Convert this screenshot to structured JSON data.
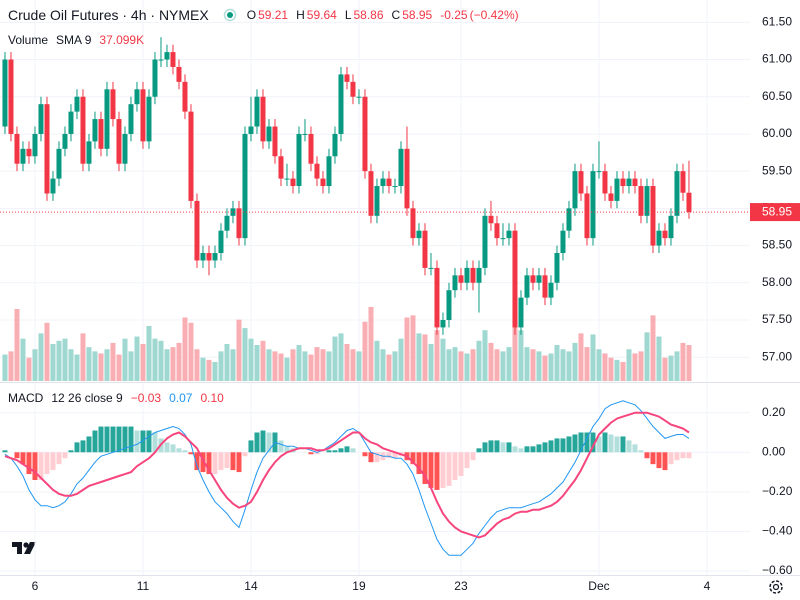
{
  "chart_data": {
    "type": "candlestick",
    "title": "Crude Oil Futures · 4h · NYMEX",
    "ohlc_labels": [
      "O",
      "H",
      "L",
      "C"
    ],
    "change": -0.25,
    "change_percent": {
      "value": -0.42,
      "label": "(−0.42%)"
    },
    "open": [
      60.1,
      61.0,
      60.0,
      59.6,
      59.8,
      59.7,
      60.0,
      60.4,
      59.2,
      59.4,
      59.8,
      60.0,
      60.3,
      60.5,
      59.6,
      59.9,
      60.2,
      59.8,
      60.6,
      60.2,
      59.6,
      60.0,
      60.4,
      60.6,
      59.9,
      60.5,
      61.0,
      61.0,
      61.1,
      60.9,
      60.7,
      60.3,
      59.1,
      58.3,
      58.4,
      58.3,
      58.4,
      58.7,
      58.9,
      59.0,
      58.6,
      60.0,
      60.1,
      60.5,
      59.9,
      60.1,
      59.7,
      59.4,
      59.4,
      59.3,
      60.0,
      60.0,
      59.6,
      59.4,
      59.3,
      59.7,
      60.0,
      60.8,
      60.7,
      60.5,
      60.5,
      59.5,
      58.9,
      59.3,
      59.4,
      59.3,
      59.3,
      59.8,
      59.0,
      58.6,
      58.7,
      58.2,
      58.2,
      57.4,
      57.5,
      57.9,
      58.1,
      58.0,
      58.2,
      58.0,
      58.2,
      58.9,
      58.8,
      58.6,
      58.6,
      58.7,
      57.4,
      57.8,
      58.1,
      58.0,
      58.1,
      57.8,
      58.0,
      58.4,
      58.7,
      59.0,
      59.5,
      59.2,
      58.6,
      59.5,
      59.5,
      59.2,
      59.1,
      59.4,
      59.3,
      59.4,
      59.3,
      58.9,
      59.3,
      58.5,
      58.7,
      58.6,
      58.9,
      59.5,
      59.21
    ],
    "high": [
      61.1,
      61.1,
      60.1,
      59.9,
      59.9,
      60.1,
      60.5,
      60.5,
      59.5,
      59.9,
      60.1,
      60.4,
      60.6,
      60.6,
      60.0,
      60.3,
      60.3,
      60.7,
      60.7,
      60.3,
      60.1,
      60.5,
      60.7,
      60.7,
      60.6,
      61.1,
      61.3,
      61.2,
      61.2,
      61.0,
      60.8,
      60.4,
      59.2,
      58.5,
      58.5,
      58.5,
      58.8,
      59.0,
      59.1,
      59.1,
      60.1,
      60.5,
      60.6,
      60.6,
      60.2,
      60.2,
      59.8,
      59.6,
      59.5,
      60.1,
      60.2,
      60.1,
      59.7,
      59.5,
      59.8,
      60.1,
      60.9,
      60.9,
      60.8,
      60.6,
      60.6,
      59.6,
      59.4,
      59.5,
      59.5,
      59.4,
      59.9,
      60.1,
      59.1,
      58.8,
      58.8,
      58.4,
      58.3,
      57.6,
      58.0,
      58.2,
      58.2,
      58.3,
      58.3,
      58.3,
      59.0,
      59.1,
      58.9,
      58.8,
      58.8,
      58.8,
      57.9,
      58.2,
      58.2,
      58.2,
      58.2,
      58.1,
      58.5,
      58.8,
      59.1,
      59.6,
      59.6,
      59.3,
      59.6,
      59.9,
      59.6,
      59.3,
      59.5,
      59.5,
      59.5,
      59.5,
      59.4,
      59.4,
      59.4,
      58.8,
      58.8,
      59.0,
      59.6,
      59.6,
      59.64
    ],
    "low": [
      60.0,
      59.9,
      59.5,
      59.5,
      59.6,
      59.6,
      59.9,
      59.1,
      59.1,
      59.3,
      59.7,
      59.9,
      60.2,
      59.5,
      59.5,
      59.8,
      59.7,
      59.7,
      60.1,
      59.5,
      59.5,
      59.9,
      60.3,
      59.8,
      59.8,
      60.4,
      60.9,
      60.9,
      60.8,
      60.6,
      60.2,
      59.0,
      58.2,
      58.2,
      58.1,
      58.2,
      58.3,
      58.6,
      58.8,
      58.5,
      58.5,
      59.9,
      60.0,
      59.8,
      59.8,
      59.6,
      59.3,
      59.3,
      59.2,
      59.2,
      59.9,
      59.5,
      59.3,
      59.2,
      59.2,
      59.6,
      59.9,
      60.6,
      60.4,
      60.4,
      59.4,
      58.8,
      58.8,
      59.2,
      59.2,
      59.2,
      59.2,
      58.9,
      58.5,
      58.5,
      58.1,
      58.1,
      57.3,
      57.3,
      57.4,
      57.8,
      57.9,
      57.9,
      57.9,
      57.6,
      58.1,
      58.7,
      58.5,
      58.5,
      58.5,
      57.3,
      57.3,
      57.7,
      57.9,
      57.9,
      57.7,
      57.7,
      57.9,
      58.3,
      58.6,
      58.9,
      59.1,
      58.5,
      58.5,
      59.4,
      59.1,
      59.0,
      59.0,
      59.2,
      59.2,
      59.2,
      58.8,
      58.8,
      58.4,
      58.4,
      58.5,
      58.5,
      58.8,
      59.1,
      58.86
    ],
    "close": [
      61.0,
      60.0,
      59.6,
      59.8,
      59.7,
      60.0,
      60.4,
      59.2,
      59.4,
      59.8,
      60.0,
      60.3,
      60.5,
      59.6,
      59.9,
      60.2,
      59.8,
      60.6,
      60.2,
      59.6,
      60.0,
      60.4,
      60.6,
      59.9,
      60.5,
      61.0,
      61.0,
      61.1,
      60.9,
      60.7,
      60.3,
      59.1,
      58.3,
      58.4,
      58.3,
      58.4,
      58.7,
      58.9,
      59.0,
      58.6,
      60.0,
      60.1,
      60.5,
      59.9,
      60.1,
      59.7,
      59.4,
      59.4,
      59.3,
      60.0,
      60.0,
      59.6,
      59.4,
      59.3,
      59.7,
      60.0,
      60.8,
      60.7,
      60.5,
      60.5,
      59.5,
      58.9,
      59.3,
      59.4,
      59.3,
      59.3,
      59.8,
      59.0,
      58.6,
      58.7,
      58.2,
      58.2,
      57.4,
      57.5,
      57.9,
      58.1,
      58.0,
      58.2,
      58.0,
      58.2,
      58.9,
      58.8,
      58.6,
      58.6,
      58.7,
      57.4,
      57.8,
      58.1,
      58.0,
      58.1,
      57.8,
      58.0,
      58.4,
      58.7,
      59.0,
      59.5,
      59.2,
      58.6,
      59.5,
      59.5,
      59.2,
      59.1,
      59.4,
      59.3,
      59.4,
      59.3,
      58.9,
      59.3,
      58.5,
      58.7,
      58.6,
      58.9,
      59.5,
      59.21,
      58.95
    ],
    "up_color": "#089981",
    "down_color": "#f23645",
    "xlim": [
      -0.83,
      124.17
    ],
    "xticks": [
      {
        "value": 5,
        "label": "6"
      },
      {
        "value": 23,
        "label": "11"
      },
      {
        "value": 41,
        "label": "14"
      },
      {
        "value": 59,
        "label": "19"
      },
      {
        "value": 76,
        "label": "23"
      },
      {
        "value": 99,
        "label": "Dec"
      },
      {
        "value": 117,
        "label": "4"
      }
    ],
    "ylim": [
      56.68,
      61.8
    ],
    "yticks": [
      {
        "value": 61.5,
        "label": "61.50"
      },
      {
        "value": 61,
        "label": "61.00"
      },
      {
        "value": 60.5,
        "label": "60.50"
      },
      {
        "value": 60,
        "label": "60.00"
      },
      {
        "value": 59.5,
        "label": "59.50"
      },
      {
        "value": 59,
        "label": "59.00"
      },
      {
        "value": 58.5,
        "label": "58.50"
      },
      {
        "value": 58,
        "label": "58.00"
      },
      {
        "value": 57.5,
        "label": "57.50"
      },
      {
        "value": 57,
        "label": "57.00"
      }
    ],
    "grid": true,
    "volume": {
      "title": "Volume",
      "sma_label": "SMA 9",
      "sma": {
        "value": 37.099,
        "label": "37.099K"
      },
      "ylim": [
        0,
        360
      ],
      "up_color": "#9fd8d0",
      "down_color": "#f8aeb3",
      "values": [
        25,
        28,
        68,
        40,
        22,
        30,
        45,
        55,
        35,
        38,
        40,
        30,
        25,
        45,
        32,
        28,
        26,
        30,
        36,
        25,
        40,
        28,
        42,
        35,
        52,
        40,
        38,
        30,
        32,
        36,
        60,
        55,
        30,
        22,
        20,
        18,
        28,
        35,
        30,
        58,
        50,
        40,
        34,
        38,
        30,
        28,
        26,
        22,
        30,
        34,
        28,
        25,
        32,
        30,
        28,
        42,
        45,
        35,
        30,
        28,
        56,
        70,
        38,
        30,
        25,
        28,
        40,
        60,
        62,
        45,
        44,
        35,
        48,
        40,
        30,
        32,
        28,
        26,
        30,
        38,
        48,
        36,
        30,
        28,
        32,
        60,
        48,
        32,
        30,
        28,
        24,
        26,
        34,
        30,
        28,
        36,
        45,
        32,
        44,
        30,
        26,
        22,
        20,
        18,
        30,
        26,
        28,
        46,
        62,
        42,
        22,
        24,
        28,
        36,
        34
      ]
    },
    "macd": {
      "title": "MACD",
      "params": "12 26 close 9",
      "macd_color": "#2196f3",
      "signal_color": "#f7457d",
      "hist_colors": [
        "#26a69a",
        "#b2dfdb",
        "#ff5252",
        "#ffcdd2"
      ],
      "legend_values": [
        {
          "value": -0.03,
          "label": "−0.03"
        },
        {
          "value": 0.07,
          "label": "0.07"
        },
        {
          "value": 0.1,
          "label": "0.10"
        }
      ],
      "ylim": [
        -0.62,
        0.35
      ],
      "yticks": [
        {
          "value": 0.2,
          "label": "0.20"
        },
        {
          "value": 0,
          "label": "0.00"
        },
        {
          "value": -0.2,
          "label": "−0.20"
        },
        {
          "value": -0.4,
          "label": "−0.40"
        },
        {
          "value": -0.6,
          "label": "−0.60"
        }
      ],
      "histogram": [
        0.01,
        0.0,
        -0.03,
        -0.06,
        -0.11,
        -0.14,
        -0.14,
        -0.11,
        -0.09,
        -0.06,
        -0.03,
        0.01,
        0.05,
        0.06,
        0.08,
        0.11,
        0.13,
        0.13,
        0.13,
        0.13,
        0.13,
        0.13,
        0.11,
        0.11,
        0.11,
        0.1,
        0.07,
        0.05,
        0.04,
        0.02,
        0.01,
        -0.01,
        -0.09,
        -0.1,
        -0.11,
        -0.11,
        -0.09,
        -0.08,
        -0.09,
        -0.1,
        -0.02,
        0.06,
        0.1,
        0.11,
        0.1,
        0.1,
        0.06,
        0.03,
        0.02,
        0.0,
        0.0,
        -0.01,
        -0.01,
        0.0,
        0.01,
        0.01,
        0.02,
        0.03,
        0.02,
        0.0,
        -0.02,
        -0.05,
        -0.05,
        -0.04,
        -0.03,
        -0.03,
        -0.02,
        -0.04,
        -0.06,
        -0.11,
        -0.16,
        -0.18,
        -0.19,
        -0.18,
        -0.17,
        -0.14,
        -0.12,
        -0.08,
        -0.04,
        0.02,
        0.05,
        0.06,
        0.06,
        0.05,
        0.05,
        0.03,
        0.02,
        0.03,
        0.03,
        0.04,
        0.05,
        0.06,
        0.07,
        0.07,
        0.08,
        0.09,
        0.1,
        0.1,
        0.1,
        0.08,
        0.1,
        0.09,
        0.08,
        0.08,
        0.06,
        0.04,
        0.01,
        -0.03,
        -0.06,
        -0.08,
        -0.09,
        -0.06,
        -0.04,
        -0.03,
        -0.03
      ],
      "macd": [
        -0.01,
        -0.03,
        -0.07,
        -0.12,
        -0.19,
        -0.24,
        -0.27,
        -0.27,
        -0.28,
        -0.27,
        -0.25,
        -0.21,
        -0.16,
        -0.13,
        -0.09,
        -0.05,
        -0.02,
        -0.01,
        0.0,
        0.01,
        0.02,
        0.03,
        0.04,
        0.06,
        0.08,
        0.1,
        0.11,
        0.12,
        0.13,
        0.12,
        0.09,
        0.04,
        -0.07,
        -0.14,
        -0.2,
        -0.25,
        -0.28,
        -0.31,
        -0.35,
        -0.38,
        -0.29,
        -0.19,
        -0.1,
        -0.03,
        0.01,
        0.05,
        0.04,
        0.03,
        0.03,
        0.02,
        0.02,
        0.01,
        0.0,
        0.01,
        0.03,
        0.05,
        0.08,
        0.11,
        0.12,
        0.1,
        0.05,
        0.0,
        -0.01,
        -0.02,
        -0.02,
        -0.03,
        -0.03,
        -0.06,
        -0.11,
        -0.19,
        -0.28,
        -0.36,
        -0.44,
        -0.49,
        -0.52,
        -0.52,
        -0.52,
        -0.49,
        -0.46,
        -0.41,
        -0.37,
        -0.33,
        -0.3,
        -0.29,
        -0.28,
        -0.28,
        -0.28,
        -0.27,
        -0.26,
        -0.25,
        -0.23,
        -0.21,
        -0.18,
        -0.15,
        -0.1,
        -0.05,
        0.01,
        0.07,
        0.13,
        0.17,
        0.22,
        0.24,
        0.25,
        0.26,
        0.25,
        0.24,
        0.21,
        0.17,
        0.13,
        0.1,
        0.07,
        0.08,
        0.09,
        0.09,
        0.07
      ],
      "signal": [
        -0.02,
        -0.03,
        -0.04,
        -0.06,
        -0.08,
        -0.1,
        -0.13,
        -0.16,
        -0.19,
        -0.21,
        -0.22,
        -0.22,
        -0.21,
        -0.19,
        -0.17,
        -0.16,
        -0.15,
        -0.14,
        -0.13,
        -0.12,
        -0.11,
        -0.1,
        -0.07,
        -0.05,
        -0.03,
        0.0,
        0.04,
        0.07,
        0.09,
        0.1,
        0.08,
        0.05,
        0.02,
        -0.04,
        -0.09,
        -0.14,
        -0.19,
        -0.23,
        -0.26,
        -0.28,
        -0.27,
        -0.25,
        -0.2,
        -0.14,
        -0.09,
        -0.05,
        -0.02,
        0.0,
        0.01,
        0.02,
        0.02,
        0.02,
        0.01,
        0.01,
        0.02,
        0.04,
        0.06,
        0.08,
        0.1,
        0.1,
        0.07,
        0.05,
        0.04,
        0.02,
        0.01,
        0.0,
        -0.01,
        -0.02,
        -0.05,
        -0.08,
        -0.12,
        -0.18,
        -0.25,
        -0.31,
        -0.35,
        -0.38,
        -0.4,
        -0.41,
        -0.42,
        -0.43,
        -0.42,
        -0.39,
        -0.36,
        -0.34,
        -0.33,
        -0.31,
        -0.3,
        -0.3,
        -0.29,
        -0.29,
        -0.28,
        -0.27,
        -0.25,
        -0.22,
        -0.18,
        -0.14,
        -0.09,
        -0.03,
        0.03,
        0.09,
        0.12,
        0.15,
        0.17,
        0.18,
        0.19,
        0.2,
        0.2,
        0.2,
        0.19,
        0.18,
        0.16,
        0.14,
        0.13,
        0.12,
        0.1
      ]
    }
  }
}
